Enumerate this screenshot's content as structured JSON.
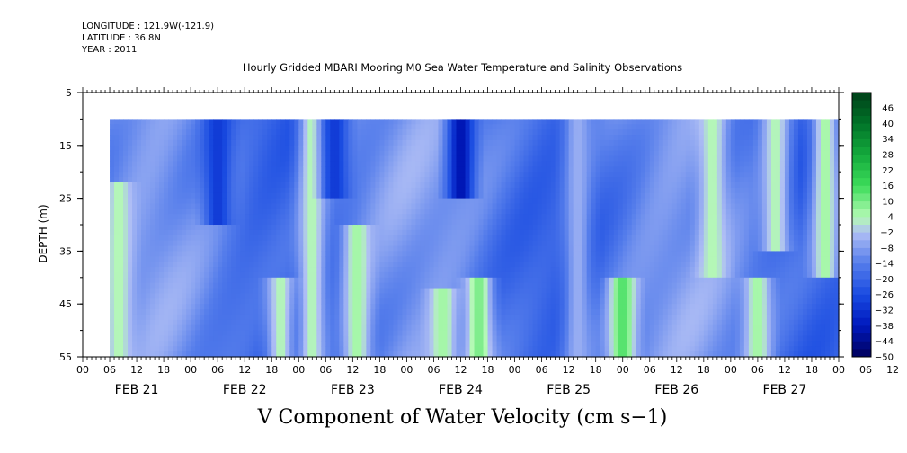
{
  "header": {
    "longitude": "LONGITUDE : 121.9W(-121.9)",
    "latitude": "LATITUDE : 36.8N",
    "year": "YEAR : 2011"
  },
  "chart_data": {
    "type": "heatmap",
    "title": "Hourly Gridded MBARI Mooring M0 Sea Water Temperature and Salinity Observations",
    "xlabel": "V Component of Water Velocity (cm s−1)",
    "ylabel": "DEPTH (m)",
    "y_ticks": [
      5,
      15,
      25,
      35,
      45,
      55
    ],
    "ylim": [
      5,
      55
    ],
    "y_reversed": true,
    "data_depth_range": [
      10,
      55
    ],
    "x_hour_ticks": [
      "00",
      "06",
      "12",
      "18",
      "00",
      "06",
      "12",
      "18",
      "00",
      "06",
      "12",
      "18",
      "00",
      "06",
      "12",
      "18",
      "00",
      "06",
      "12",
      "18",
      "00",
      "06",
      "12",
      "18",
      "00",
      "06",
      "12",
      "18",
      "00",
      "06",
      "12",
      "18",
      "00"
    ],
    "x_day_labels": [
      "FEB 21",
      "FEB 22",
      "FEB 23",
      "FEB 24",
      "FEB 25",
      "FEB 26",
      "FEB 27"
    ],
    "x_range_hours": [
      0,
      168
    ],
    "data_start_hour": 6,
    "colorbar": {
      "labels": [
        "46",
        "40",
        "34",
        "28",
        "22",
        "16",
        "10",
        "4",
        "−2",
        "−8",
        "−14",
        "−20",
        "−26",
        "−32",
        "−38",
        "−44",
        "−50"
      ],
      "range": [
        -50,
        52
      ]
    },
    "features": [
      {
        "hour": 8,
        "depth_from": 22,
        "depth_to": 55,
        "value": 4
      },
      {
        "hour": 30,
        "depth_from": 10,
        "depth_to": 30,
        "value": -30
      },
      {
        "hour": 44,
        "depth_from": 40,
        "depth_to": 55,
        "value": 4
      },
      {
        "hour": 51,
        "depth_from": 10,
        "depth_to": 55,
        "value": 4
      },
      {
        "hour": 56,
        "depth_from": 10,
        "depth_to": 25,
        "value": -30
      },
      {
        "hour": 61,
        "depth_from": 30,
        "depth_to": 55,
        "value": 6
      },
      {
        "hour": 80,
        "depth_from": 42,
        "depth_to": 55,
        "value": 6
      },
      {
        "hour": 84,
        "depth_from": 10,
        "depth_to": 25,
        "value": -40
      },
      {
        "hour": 88,
        "depth_from": 40,
        "depth_to": 55,
        "value": 10
      },
      {
        "hour": 110,
        "depth_from": 10,
        "depth_to": 55,
        "value": -5
      },
      {
        "hour": 120,
        "depth_from": 40,
        "depth_to": 55,
        "value": 14
      },
      {
        "hour": 140,
        "depth_from": 10,
        "depth_to": 40,
        "value": 4
      },
      {
        "hour": 150,
        "depth_from": 40,
        "depth_to": 55,
        "value": 6
      },
      {
        "hour": 154,
        "depth_from": 10,
        "depth_to": 35,
        "value": 4
      },
      {
        "hour": 165,
        "depth_from": 10,
        "depth_to": 40,
        "value": 6
      }
    ]
  }
}
